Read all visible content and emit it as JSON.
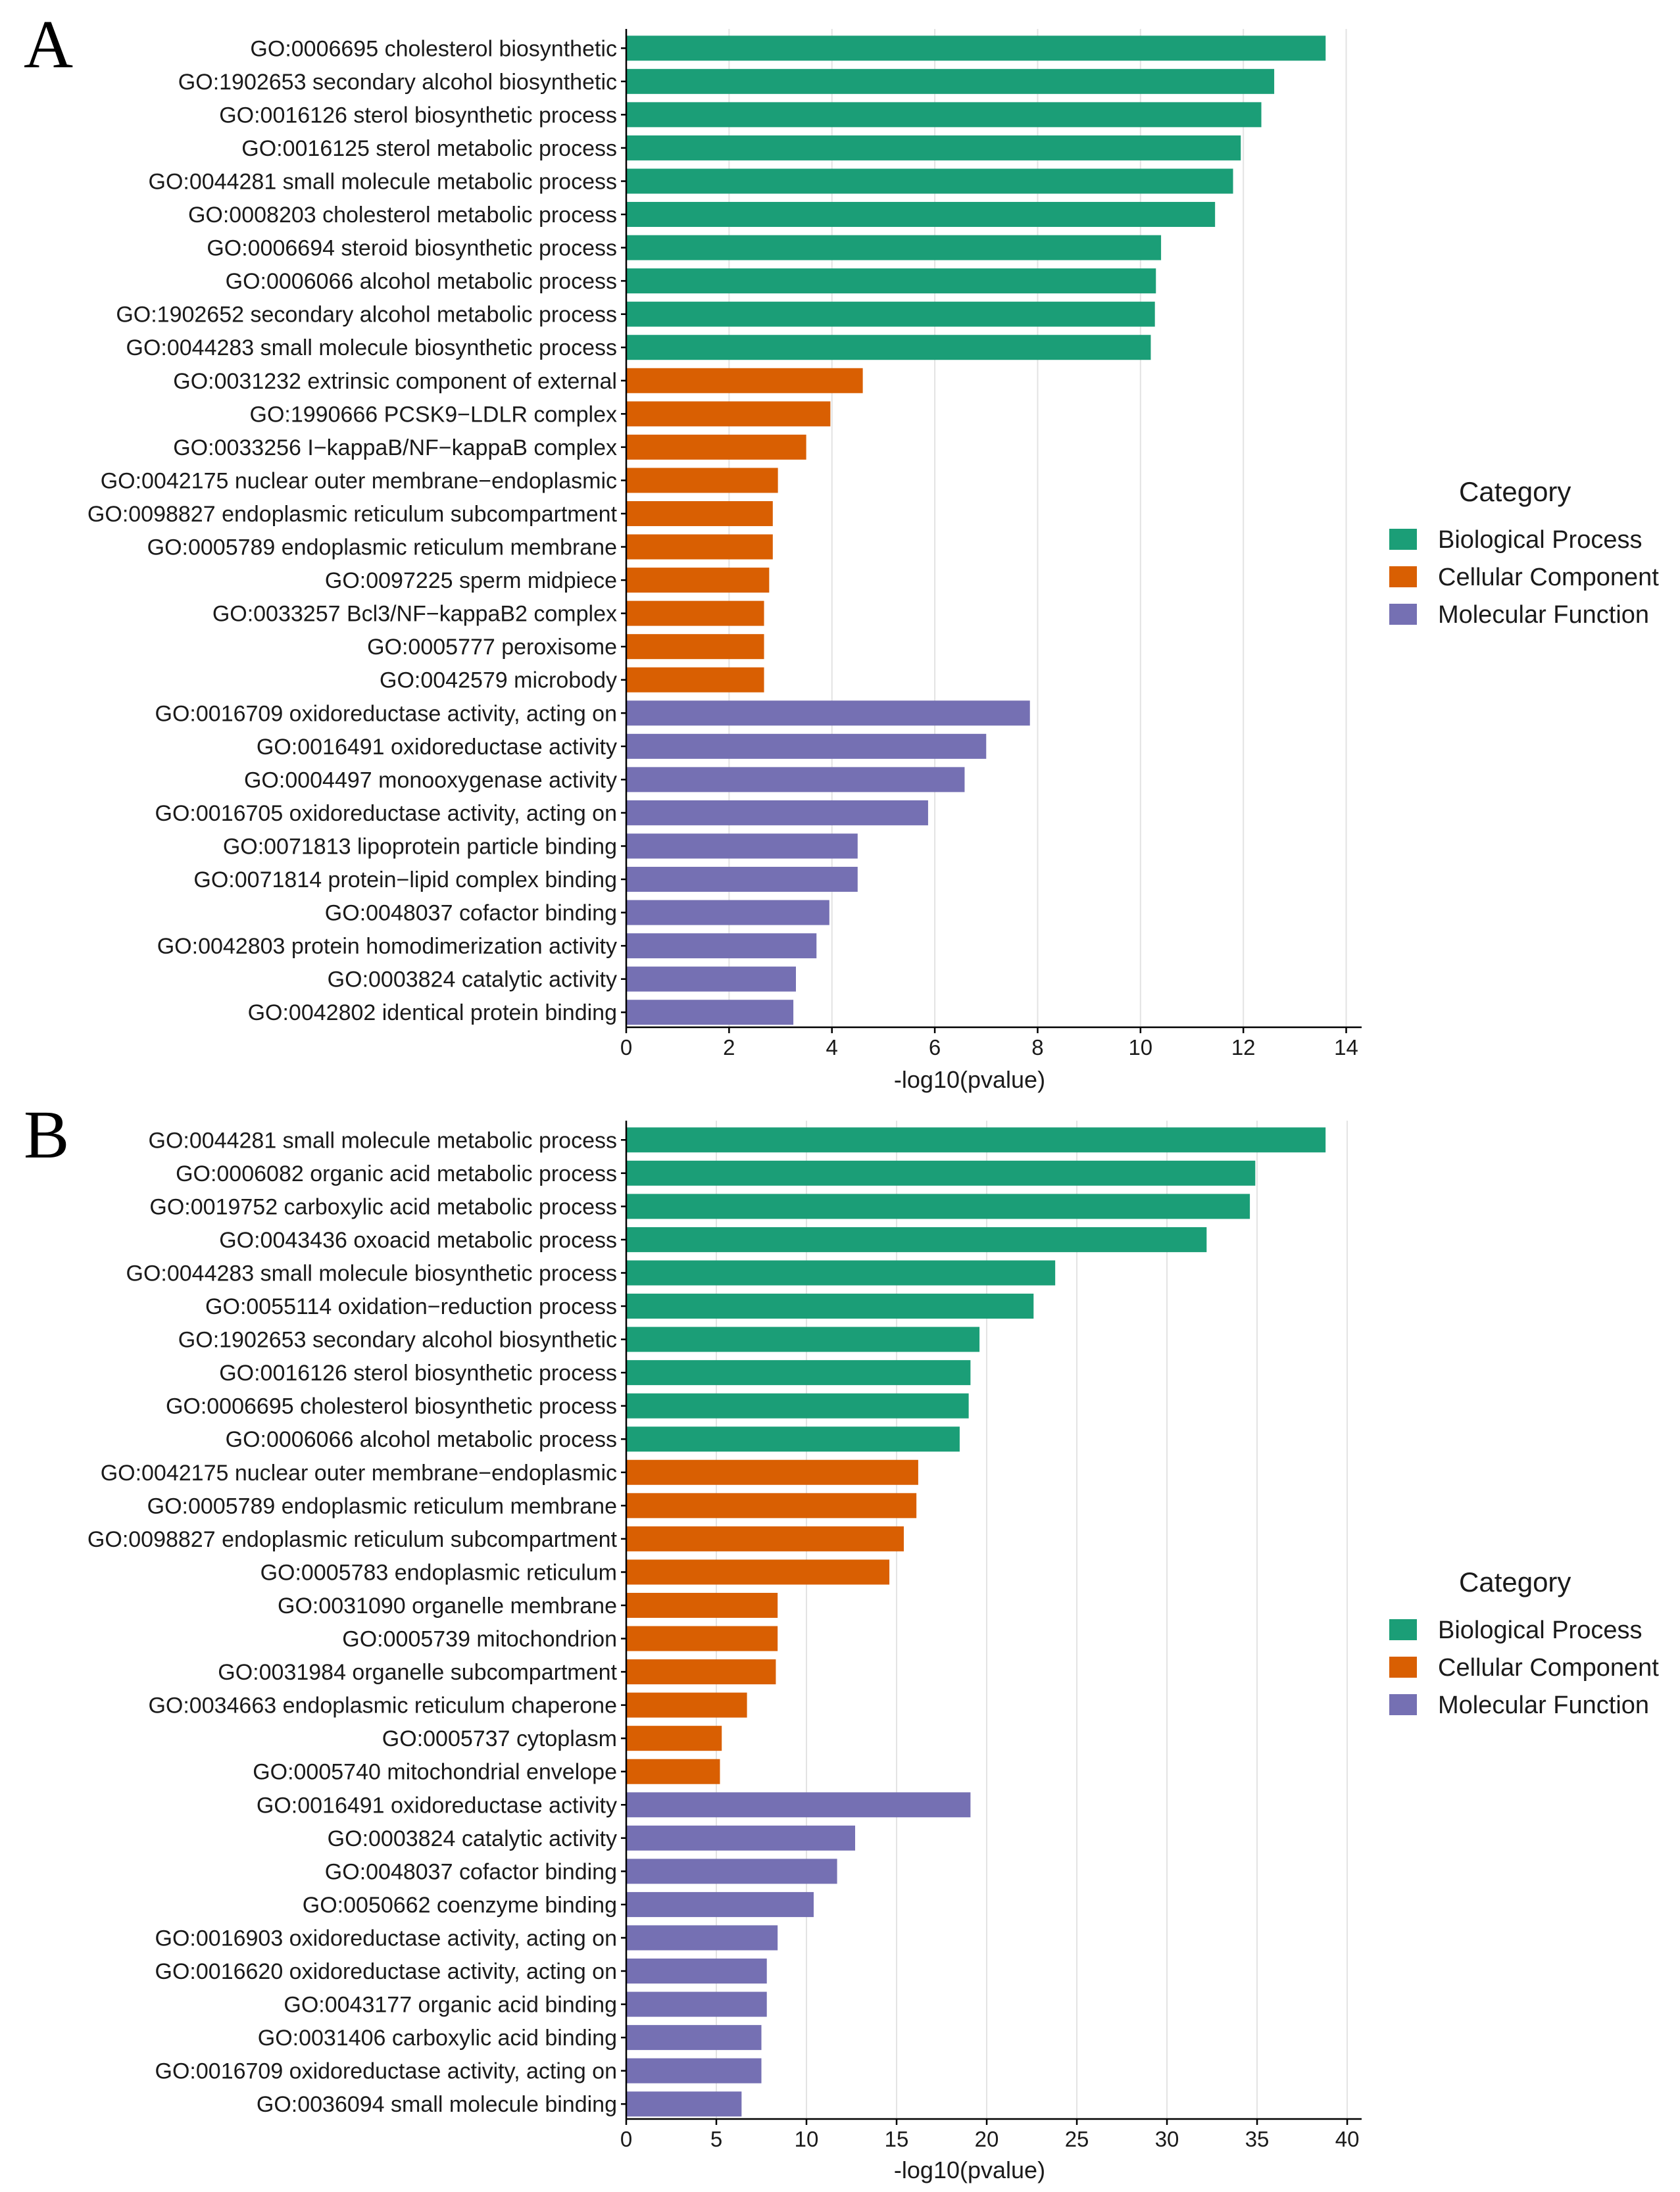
{
  "category_colors": {
    "Biological Process": "#1b9e77",
    "Cellular Component": "#d95f02",
    "Molecular Function": "#7570b3"
  },
  "chart_data": [
    {
      "type": "bar",
      "orientation": "horizontal",
      "panel_label": "A",
      "xlabel": "-log10(pvalue)",
      "xlim": [
        0,
        14.3
      ],
      "xticks": [
        0,
        2,
        4,
        6,
        8,
        10,
        12,
        14
      ],
      "legend_title": "Category",
      "legend_items": [
        "Biological Process",
        "Cellular Component",
        "Molecular Function"
      ],
      "bars": [
        {
          "label": "GO:0006695 cholesterol biosynthetic",
          "value": 13.6,
          "category": "Biological Process"
        },
        {
          "label": "GO:1902653 secondary alcohol biosynthetic",
          "value": 12.6,
          "category": "Biological Process"
        },
        {
          "label": "GO:0016126 sterol biosynthetic process",
          "value": 12.35,
          "category": "Biological Process"
        },
        {
          "label": "GO:0016125 sterol metabolic process",
          "value": 11.95,
          "category": "Biological Process"
        },
        {
          "label": "GO:0044281 small molecule metabolic process",
          "value": 11.8,
          "category": "Biological Process"
        },
        {
          "label": "GO:0008203 cholesterol metabolic process",
          "value": 11.45,
          "category": "Biological Process"
        },
        {
          "label": "GO:0006694 steroid biosynthetic process",
          "value": 10.4,
          "category": "Biological Process"
        },
        {
          "label": "GO:0006066 alcohol metabolic process",
          "value": 10.3,
          "category": "Biological Process"
        },
        {
          "label": "GO:1902652 secondary alcohol metabolic process",
          "value": 10.28,
          "category": "Biological Process"
        },
        {
          "label": "GO:0044283 small molecule biosynthetic process",
          "value": 10.2,
          "category": "Biological Process"
        },
        {
          "label": "GO:0031232 extrinsic component of external",
          "value": 4.6,
          "category": "Cellular Component"
        },
        {
          "label": "GO:1990666 PCSK9−LDLR complex",
          "value": 3.97,
          "category": "Cellular Component"
        },
        {
          "label": "GO:0033256 I−kappaB/NF−kappaB complex",
          "value": 3.5,
          "category": "Cellular Component"
        },
        {
          "label": "GO:0042175 nuclear outer membrane−endoplasmic",
          "value": 2.95,
          "category": "Cellular Component"
        },
        {
          "label": "GO:0098827 endoplasmic reticulum subcompartment",
          "value": 2.85,
          "category": "Cellular Component"
        },
        {
          "label": "GO:0005789 endoplasmic reticulum membrane",
          "value": 2.85,
          "category": "Cellular Component"
        },
        {
          "label": "GO:0097225 sperm midpiece",
          "value": 2.78,
          "category": "Cellular Component"
        },
        {
          "label": "GO:0033257 Bcl3/NF−kappaB2 complex",
          "value": 2.68,
          "category": "Cellular Component"
        },
        {
          "label": "GO:0005777 peroxisome",
          "value": 2.68,
          "category": "Cellular Component"
        },
        {
          "label": "GO:0042579 microbody",
          "value": 2.68,
          "category": "Cellular Component"
        },
        {
          "label": "GO:0016709 oxidoreductase activity, acting on",
          "value": 7.85,
          "category": "Molecular Function"
        },
        {
          "label": "GO:0016491 oxidoreductase activity",
          "value": 7.0,
          "category": "Molecular Function"
        },
        {
          "label": "GO:0004497 monooxygenase activity",
          "value": 6.58,
          "category": "Molecular Function"
        },
        {
          "label": "GO:0016705 oxidoreductase activity, acting on",
          "value": 5.87,
          "category": "Molecular Function"
        },
        {
          "label": "GO:0071813 lipoprotein particle binding",
          "value": 4.5,
          "category": "Molecular Function"
        },
        {
          "label": "GO:0071814 protein−lipid complex binding",
          "value": 4.5,
          "category": "Molecular Function"
        },
        {
          "label": "GO:0048037 cofactor binding",
          "value": 3.95,
          "category": "Molecular Function"
        },
        {
          "label": "GO:0042803 protein homodimerization activity",
          "value": 3.7,
          "category": "Molecular Function"
        },
        {
          "label": "GO:0003824 catalytic activity",
          "value": 3.3,
          "category": "Molecular Function"
        },
        {
          "label": "GO:0042802 identical protein binding",
          "value": 3.25,
          "category": "Molecular Function"
        }
      ]
    },
    {
      "type": "bar",
      "orientation": "horizontal",
      "panel_label": "B",
      "xlabel": "-log10(pvalue)",
      "xlim": [
        0,
        40.8
      ],
      "xticks": [
        0,
        5,
        10,
        15,
        20,
        25,
        30,
        35,
        40
      ],
      "legend_title": "Category",
      "legend_items": [
        "Biological Process",
        "Cellular Component",
        "Molecular Function"
      ],
      "bars": [
        {
          "label": "GO:0044281 small molecule metabolic process",
          "value": 38.8,
          "category": "Biological Process"
        },
        {
          "label": "GO:0006082 organic acid metabolic process",
          "value": 34.9,
          "category": "Biological Process"
        },
        {
          "label": "GO:0019752 carboxylic acid metabolic process",
          "value": 34.6,
          "category": "Biological Process"
        },
        {
          "label": "GO:0043436 oxoacid metabolic process",
          "value": 32.2,
          "category": "Biological Process"
        },
        {
          "label": "GO:0044283 small molecule biosynthetic process",
          "value": 23.8,
          "category": "Biological Process"
        },
        {
          "label": "GO:0055114 oxidation−reduction process",
          "value": 22.6,
          "category": "Biological Process"
        },
        {
          "label": "GO:1902653 secondary alcohol biosynthetic",
          "value": 19.6,
          "category": "Biological Process"
        },
        {
          "label": "GO:0016126 sterol biosynthetic process",
          "value": 19.1,
          "category": "Biological Process"
        },
        {
          "label": "GO:0006695 cholesterol biosynthetic process",
          "value": 19.0,
          "category": "Biological Process"
        },
        {
          "label": "GO:0006066 alcohol metabolic process",
          "value": 18.5,
          "category": "Biological Process"
        },
        {
          "label": "GO:0042175 nuclear outer membrane−endoplasmic",
          "value": 16.2,
          "category": "Cellular Component"
        },
        {
          "label": "GO:0005789 endoplasmic reticulum membrane",
          "value": 16.1,
          "category": "Cellular Component"
        },
        {
          "label": "GO:0098827 endoplasmic reticulum subcompartment",
          "value": 15.4,
          "category": "Cellular Component"
        },
        {
          "label": "GO:0005783 endoplasmic reticulum",
          "value": 14.6,
          "category": "Cellular Component"
        },
        {
          "label": "GO:0031090 organelle membrane",
          "value": 8.4,
          "category": "Cellular Component"
        },
        {
          "label": "GO:0005739 mitochondrion",
          "value": 8.4,
          "category": "Cellular Component"
        },
        {
          "label": "GO:0031984 organelle subcompartment",
          "value": 8.3,
          "category": "Cellular Component"
        },
        {
          "label": "GO:0034663 endoplasmic reticulum chaperone",
          "value": 6.7,
          "category": "Cellular Component"
        },
        {
          "label": "GO:0005737 cytoplasm",
          "value": 5.3,
          "category": "Cellular Component"
        },
        {
          "label": "GO:0005740 mitochondrial envelope",
          "value": 5.2,
          "category": "Cellular Component"
        },
        {
          "label": "GO:0016491 oxidoreductase activity",
          "value": 19.1,
          "category": "Molecular Function"
        },
        {
          "label": "GO:0003824 catalytic activity",
          "value": 12.7,
          "category": "Molecular Function"
        },
        {
          "label": "GO:0048037 cofactor binding",
          "value": 11.7,
          "category": "Molecular Function"
        },
        {
          "label": "GO:0050662 coenzyme binding",
          "value": 10.4,
          "category": "Molecular Function"
        },
        {
          "label": "GO:0016903 oxidoreductase activity, acting on",
          "value": 8.4,
          "category": "Molecular Function"
        },
        {
          "label": "GO:0016620 oxidoreductase activity, acting on",
          "value": 7.8,
          "category": "Molecular Function"
        },
        {
          "label": "GO:0043177 organic acid binding",
          "value": 7.8,
          "category": "Molecular Function"
        },
        {
          "label": "GO:0031406 carboxylic acid binding",
          "value": 7.5,
          "category": "Molecular Function"
        },
        {
          "label": "GO:0016709 oxidoreductase activity, acting on",
          "value": 7.5,
          "category": "Molecular Function"
        },
        {
          "label": "GO:0036094 small molecule binding",
          "value": 6.4,
          "category": "Molecular Function"
        }
      ]
    }
  ]
}
